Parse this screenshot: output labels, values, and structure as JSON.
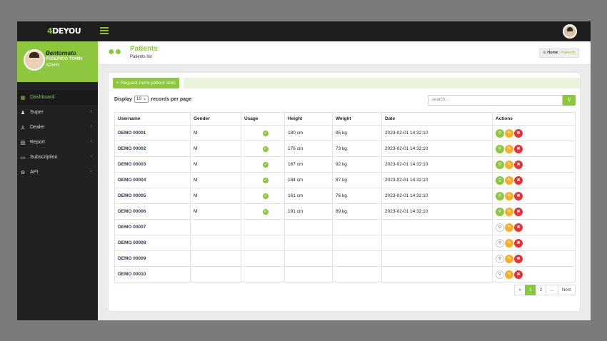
{
  "header": {
    "logo_text": "DEYOU",
    "logo_accent": "4"
  },
  "sidebar": {
    "greeting": "Bentornato",
    "user_name": "FEDERICO TONIN",
    "role": "ADMIN",
    "items": [
      {
        "label": "Dashboard",
        "icon": "dashboard-icon"
      },
      {
        "label": "Super",
        "icon": "user-icon"
      },
      {
        "label": "Dealer",
        "icon": "dealer-icon"
      },
      {
        "label": "Report",
        "icon": "report-icon"
      },
      {
        "label": "Subscription",
        "icon": "card-icon"
      },
      {
        "label": "API",
        "icon": "cogs-icon"
      }
    ]
  },
  "page": {
    "title": "Patients",
    "subtitle": "Patients list",
    "breadcrumb_home": "Home",
    "breadcrumb_current": "Patients"
  },
  "toolbar": {
    "request_label": "+ Request more patient slots",
    "display_prefix": "Display",
    "display_value": "10",
    "display_suffix": "records per page",
    "search_placeholder": "search..."
  },
  "table": {
    "headers": [
      "Username",
      "Gender",
      "Usage",
      "Height",
      "Weight",
      "Date",
      "Actions"
    ],
    "rows": [
      {
        "username": "DEMO 00001",
        "gender": "M",
        "usage": true,
        "height": "180 cm",
        "weight": "85 kg",
        "date": "2023-02-01 14:32:10"
      },
      {
        "username": "DEMO 00002",
        "gender": "M",
        "usage": true,
        "height": "176 cm",
        "weight": "73 kg",
        "date": "2023-02-01 14:32:10"
      },
      {
        "username": "DEMO 00003",
        "gender": "M",
        "usage": true,
        "height": "167 cm",
        "weight": "92 kg",
        "date": "2023-02-01 14:32:10"
      },
      {
        "username": "DEMO 00004",
        "gender": "M",
        "usage": true,
        "height": "184 cm",
        "weight": "87 kg",
        "date": "2023-02-01 14:32:10"
      },
      {
        "username": "DEMO 00005",
        "gender": "M",
        "usage": true,
        "height": "161 cm",
        "weight": "76 kg",
        "date": "2023-02-01 14:32:10"
      },
      {
        "username": "DEMO 00006",
        "gender": "M",
        "usage": true,
        "height": "191 cm",
        "weight": "89 kg",
        "date": "2023-02-01 14:32:10"
      },
      {
        "username": "DEMO 00007",
        "gender": "",
        "usage": false,
        "height": "",
        "weight": "",
        "date": ""
      },
      {
        "username": "DEMO 00008",
        "gender": "",
        "usage": false,
        "height": "",
        "weight": "",
        "date": ""
      },
      {
        "username": "DEMO 00009",
        "gender": "",
        "usage": false,
        "height": "",
        "weight": "",
        "date": ""
      },
      {
        "username": "DEMO 00010",
        "gender": "",
        "usage": false,
        "height": "",
        "weight": "",
        "date": ""
      }
    ]
  },
  "pagination": {
    "prev": "«",
    "pages": [
      "1",
      "2"
    ],
    "ellipsis": "...",
    "next": "Next",
    "current": "1"
  },
  "colors": {
    "accent": "#8dc63f",
    "edit": "#f3b02f",
    "delete": "#e0363b",
    "sidebar": "#212121"
  }
}
